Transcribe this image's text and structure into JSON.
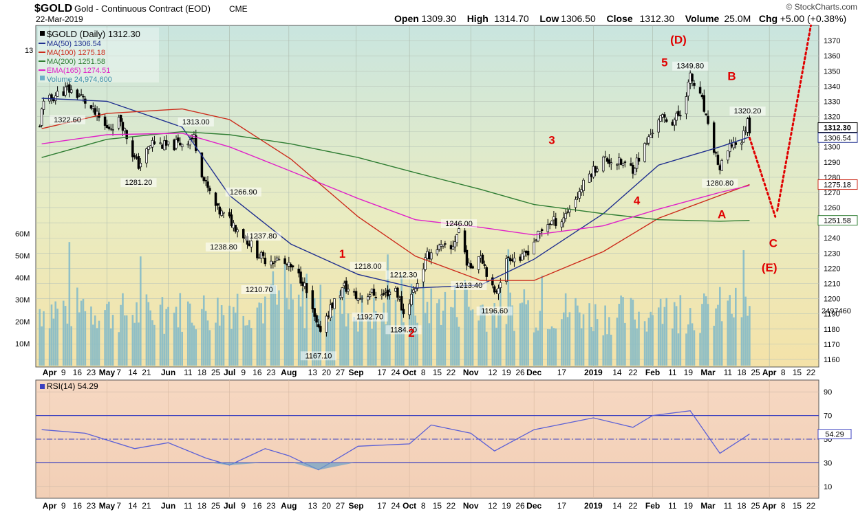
{
  "header": {
    "symbol": "$GOLD",
    "name": "Gold - Continuous Contract (EOD)",
    "exchange": "CME",
    "date": "22-Mar-2019",
    "brand": "© StockCharts.com",
    "ohlc": [
      {
        "label": "Open",
        "value": "1309.30"
      },
      {
        "label": "High",
        "value": "1314.70"
      },
      {
        "label": "Low",
        "value": "1306.50"
      },
      {
        "label": "Close",
        "value": "1312.30"
      },
      {
        "label": "Volume",
        "value": "25.0M"
      },
      {
        "label": "Chg",
        "value": "+5.00 (+0.38%)"
      }
    ]
  },
  "legend": [
    {
      "text": "$GOLD (Daily) 1312.30",
      "color": "#000000",
      "kind": "price"
    },
    {
      "text": "MA(50) 1306.54",
      "color": "#1f2f8f",
      "kind": "line"
    },
    {
      "text": "MA(100) 1275.18",
      "color": "#cc2a1a",
      "kind": "line"
    },
    {
      "text": "MA(200) 1251.58",
      "color": "#2e7d32",
      "kind": "line"
    },
    {
      "text": "EMA(165) 1274.51",
      "color": "#e020c8",
      "kind": "line"
    },
    {
      "text": "Volume 24,974,600",
      "color": "#6cb0c8",
      "kind": "area"
    }
  ],
  "left_stub": "13",
  "rsi": {
    "label": "RSI(14) 54.29",
    "value_badge": "54.29",
    "ticks": [
      "90",
      "70",
      "50",
      "30",
      "10"
    ]
  },
  "volume_axis": [
    "60M",
    "50M",
    "40M",
    "30M",
    "20M",
    "10M"
  ],
  "volume_badge": "2497460",
  "price_badges": [
    "1312.30",
    "1306.54",
    "1275.18",
    "1251.58"
  ],
  "x_axis_labels": [
    "Apr",
    "9",
    "16",
    "23",
    "May",
    "7",
    "14",
    "21",
    "Jun",
    "11",
    "18",
    "25",
    "Jul",
    "9",
    "16",
    "23",
    "Aug",
    "13",
    "20",
    "27",
    "Sep",
    "17",
    "24",
    "Oct",
    "8",
    "15",
    "22",
    "Nov",
    "12",
    "19",
    "26",
    "Dec",
    "17",
    "2019",
    "14",
    "22",
    "Feb",
    "11",
    "19",
    "Mar",
    "11",
    "18",
    "25",
    "Apr",
    "8",
    "15",
    "22"
  ],
  "wave_labels": {
    "w1": "1",
    "w2": "2",
    "w3": "3",
    "w4": "4",
    "w5": "5",
    "D": "(D)",
    "B": "B",
    "A": "A",
    "C": "C",
    "E": "(E)"
  },
  "chart_data": {
    "type": "line",
    "title": "$GOLD Gold - Continuous Contract (EOD) CME",
    "ylim": [
      1155,
      1380
    ],
    "yticks": [
      1160,
      1170,
      1180,
      1190,
      1200,
      1210,
      1220,
      1230,
      1240,
      1250,
      1260,
      1270,
      1280,
      1290,
      1300,
      1310,
      1320,
      1330,
      1340,
      1350,
      1360,
      1370
    ],
    "rsi_ylim": [
      0,
      100
    ],
    "rsi_levels": [
      30,
      70
    ],
    "annotations": [
      {
        "text": "1322.60",
        "date": "2018-04-11",
        "price": 1322.6
      },
      {
        "text": "1281.20",
        "date": "2018-05-17",
        "price": 1281.2
      },
      {
        "text": "1313.00",
        "date": "2018-06-15",
        "price": 1313.0
      },
      {
        "text": "1266.90",
        "date": "2018-07-09",
        "price": 1266.9
      },
      {
        "text": "1238.80",
        "date": "2018-06-29",
        "price": 1238.8
      },
      {
        "text": "1237.80",
        "date": "2018-07-19",
        "price": 1237.8
      },
      {
        "text": "1210.70",
        "date": "2018-07-17",
        "price": 1210.7
      },
      {
        "text": "1167.10",
        "date": "2018-08-16",
        "price": 1167.1
      },
      {
        "text": "1218.00",
        "date": "2018-09-10",
        "price": 1218.0
      },
      {
        "text": "1192.70",
        "date": "2018-09-11",
        "price": 1192.7
      },
      {
        "text": "1212.30",
        "date": "2018-09-28",
        "price": 1212.3
      },
      {
        "text": "1184.30",
        "date": "2018-09-28",
        "price": 1184.3
      },
      {
        "text": "1246.00",
        "date": "2018-10-26",
        "price": 1246.0
      },
      {
        "text": "1213.40",
        "date": "2018-10-31",
        "price": 1213.4
      },
      {
        "text": "1196.60",
        "date": "2018-11-13",
        "price": 1196.6
      },
      {
        "text": "1349.80",
        "date": "2019-02-20",
        "price": 1349.8
      },
      {
        "text": "1280.80",
        "date": "2019-03-07",
        "price": 1280.8
      },
      {
        "text": "1320.20",
        "date": "2019-03-21",
        "price": 1320.2
      }
    ],
    "series": [
      {
        "name": "$GOLD (Daily)",
        "x": [
          "2018-03-29",
          "2018-04-06",
          "2018-04-11",
          "2018-04-18",
          "2018-04-26",
          "2018-05-01",
          "2018-05-08",
          "2018-05-15",
          "2018-05-17",
          "2018-05-24",
          "2018-06-01",
          "2018-06-08",
          "2018-06-14",
          "2018-06-19",
          "2018-06-26",
          "2018-07-02",
          "2018-07-09",
          "2018-07-16",
          "2018-07-19",
          "2018-07-26",
          "2018-08-02",
          "2018-08-08",
          "2018-08-16",
          "2018-08-22",
          "2018-08-29",
          "2018-09-05",
          "2018-09-11",
          "2018-09-17",
          "2018-09-24",
          "2018-09-28",
          "2018-10-04",
          "2018-10-10",
          "2018-10-15",
          "2018-10-22",
          "2018-10-26",
          "2018-10-31",
          "2018-11-06",
          "2018-11-13",
          "2018-11-20",
          "2018-11-27",
          "2018-12-03",
          "2018-12-10",
          "2018-12-17",
          "2018-12-24",
          "2018-12-31",
          "2019-01-07",
          "2019-01-14",
          "2019-01-22",
          "2019-01-28",
          "2019-02-04",
          "2019-02-11",
          "2019-02-15",
          "2019-02-20",
          "2019-02-26",
          "2019-03-01",
          "2019-03-07",
          "2019-03-13",
          "2019-03-18",
          "2019-03-21",
          "2019-03-22"
        ],
        "values": [
          1327,
          1335,
          1338,
          1333,
          1320,
          1312,
          1318,
          1292,
          1288,
          1303,
          1300,
          1303,
          1306,
          1278,
          1258,
          1252,
          1242,
          1230,
          1226,
          1226,
          1220,
          1212,
          1178,
          1194,
          1208,
          1200,
          1204,
          1202,
          1207,
          1190,
          1208,
          1228,
          1234,
          1232,
          1246,
          1220,
          1230,
          1202,
          1228,
          1226,
          1238,
          1250,
          1252,
          1266,
          1282,
          1292,
          1290,
          1286,
          1300,
          1319,
          1317,
          1322,
          1346,
          1330,
          1312,
          1285,
          1302,
          1304,
          1317,
          1312.3
        ]
      },
      {
        "name": "MA(50)",
        "x": [
          "2018-03-29",
          "2018-05-01",
          "2018-06-08",
          "2018-07-02",
          "2018-08-02",
          "2018-09-05",
          "2018-10-04",
          "2018-11-06",
          "2018-12-03",
          "2019-01-07",
          "2019-02-04",
          "2019-03-07",
          "2019-03-22"
        ],
        "values": [
          1332,
          1330,
          1313,
          1268,
          1236,
          1216,
          1207,
          1209,
          1226,
          1256,
          1288,
          1300,
          1306.54
        ]
      },
      {
        "name": "MA(100)",
        "x": [
          "2018-03-29",
          "2018-05-01",
          "2018-06-08",
          "2018-07-02",
          "2018-08-02",
          "2018-09-05",
          "2018-10-04",
          "2018-11-06",
          "2018-12-03",
          "2019-01-07",
          "2019-02-04",
          "2019-03-07",
          "2019-03-22"
        ],
        "values": [
          1312,
          1322,
          1325,
          1318,
          1292,
          1254,
          1228,
          1212,
          1212,
          1231,
          1253,
          1268,
          1275.18
        ]
      },
      {
        "name": "MA(200)",
        "x": [
          "2018-03-29",
          "2018-05-01",
          "2018-06-08",
          "2018-07-02",
          "2018-08-02",
          "2018-09-05",
          "2018-10-04",
          "2018-11-06",
          "2018-12-03",
          "2019-01-07",
          "2019-02-04",
          "2019-03-07",
          "2019-03-22"
        ],
        "values": [
          1293,
          1305,
          1310,
          1308,
          1302,
          1293,
          1283,
          1272,
          1262,
          1256,
          1252,
          1251,
          1251.58
        ]
      },
      {
        "name": "EMA(165)",
        "x": [
          "2018-03-29",
          "2018-05-01",
          "2018-06-08",
          "2018-07-02",
          "2018-08-02",
          "2018-09-05",
          "2018-10-04",
          "2018-11-06",
          "2018-12-03",
          "2019-01-07",
          "2019-02-04",
          "2019-03-07",
          "2019-03-22"
        ],
        "values": [
          1302,
          1308,
          1309,
          1300,
          1284,
          1266,
          1252,
          1247,
          1242,
          1248,
          1259,
          1270,
          1274.51
        ]
      },
      {
        "name": "Volume",
        "x": [
          "2018-04",
          "2018-05",
          "2018-06",
          "2018-07",
          "2018-08",
          "2018-09",
          "2018-10",
          "2018-11",
          "2018-12",
          "2019-01",
          "2019-02",
          "2019-03"
        ],
        "values": [
          28,
          26,
          27,
          30,
          29,
          26,
          30,
          28,
          27,
          25,
          26,
          28
        ]
      },
      {
        "name": "RSI(14)",
        "x": [
          "2018-03-29",
          "2018-04-20",
          "2018-05-15",
          "2018-06-01",
          "2018-06-20",
          "2018-07-02",
          "2018-07-20",
          "2018-08-01",
          "2018-08-16",
          "2018-09-05",
          "2018-10-01",
          "2018-10-12",
          "2018-11-01",
          "2018-11-13",
          "2018-12-03",
          "2019-01-02",
          "2019-01-22",
          "2019-02-01",
          "2019-02-20",
          "2019-03-07",
          "2019-03-22"
        ],
        "values": [
          58,
          55,
          42,
          47,
          34,
          28,
          42,
          36,
          24,
          44,
          46,
          62,
          55,
          40,
          58,
          68,
          60,
          70,
          74,
          38,
          54.29
        ]
      }
    ],
    "forecast": [
      {
        "label": "C",
        "x": [
          "2019-03-22",
          "2019-04-04"
        ],
        "values": [
          1306,
          1254
        ]
      },
      {
        "label": "(E)",
        "x": [
          "2019-04-05",
          "2019-04-22"
        ],
        "values": [
          1258,
          1385
        ]
      }
    ]
  }
}
